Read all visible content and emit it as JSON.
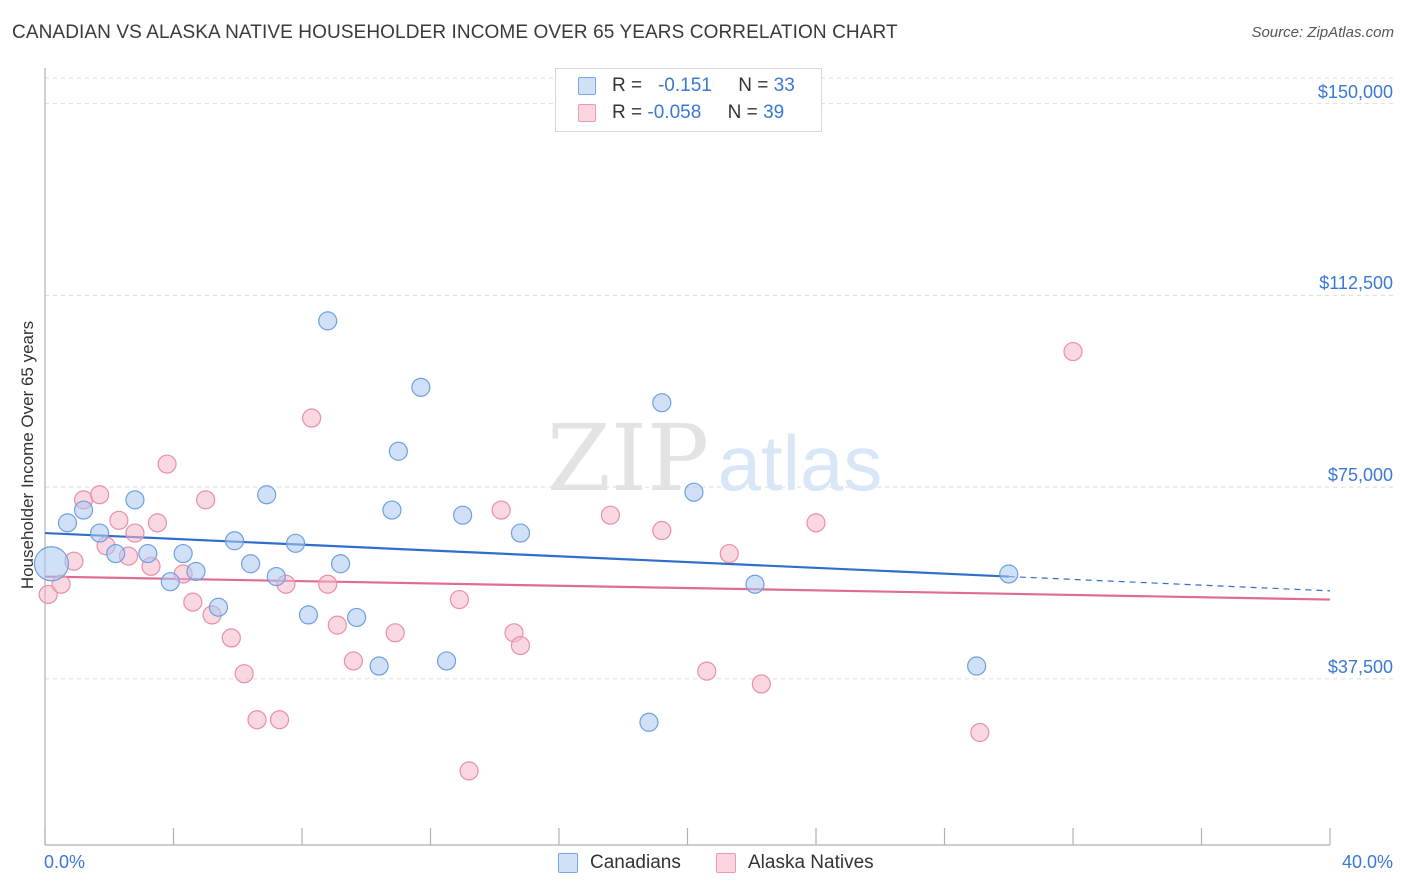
{
  "title": "CANADIAN VS ALASKA NATIVE HOUSEHOLDER INCOME OVER 65 YEARS CORRELATION CHART",
  "source": "Source: ZipAtlas.com",
  "watermark": {
    "zip": "ZIP",
    "atlas": "atlas"
  },
  "legend_stats": [
    {
      "r_label": "R =",
      "r_value": "-0.151",
      "n_label": "N =",
      "n_value": "33",
      "color": "#aac8f0"
    },
    {
      "r_label": "R =",
      "r_value": "-0.058",
      "n_label": "N =",
      "n_value": "39",
      "color": "#f5b8c9"
    }
  ],
  "legend_bottom": [
    {
      "label": "Canadians",
      "color": "#aac8f0"
    },
    {
      "label": "Alaska Natives",
      "color": "#f5b8c9"
    }
  ],
  "chart_data": {
    "type": "scatter",
    "title": "CANADIAN VS ALASKA NATIVE HOUSEHOLDER INCOME OVER 65 YEARS CORRELATION CHART",
    "xlabel": "",
    "ylabel": "Householder Income Over 65 years",
    "xlim": [
      0,
      40
    ],
    "ylim": [
      5000,
      155000
    ],
    "x_tick_labels": [
      "0.0%",
      "40.0%"
    ],
    "y_ticks": [
      37500,
      75000,
      112500,
      150000
    ],
    "y_tick_labels": [
      "$37,500",
      "$75,000",
      "$112,500",
      "$150,000"
    ],
    "grid": true,
    "series": [
      {
        "name": "Canadians",
        "color": "#aac8f0",
        "edge": "#6f9fe0",
        "trend_color": "#2f6fcc",
        "trend": {
          "x0": 0,
          "y0": 66000,
          "x1": 30,
          "y1": 57500,
          "dash_to_x": 40,
          "dash_to_y": 54700
        },
        "points": [
          [
            0.2,
            60000,
            "big"
          ],
          [
            0.7,
            68000
          ],
          [
            1.2,
            70500
          ],
          [
            1.7,
            66000
          ],
          [
            2.2,
            62000
          ],
          [
            2.8,
            72500
          ],
          [
            3.2,
            62000
          ],
          [
            3.9,
            56500
          ],
          [
            4.3,
            62000
          ],
          [
            4.7,
            58500
          ],
          [
            5.4,
            51500
          ],
          [
            5.9,
            64500
          ],
          [
            6.4,
            60000
          ],
          [
            6.9,
            73500
          ],
          [
            7.2,
            57500
          ],
          [
            7.8,
            64000
          ],
          [
            8.2,
            50000
          ],
          [
            8.8,
            107500
          ],
          [
            9.2,
            60000
          ],
          [
            9.7,
            49500
          ],
          [
            10.4,
            40000
          ],
          [
            10.8,
            70500
          ],
          [
            11.0,
            82000
          ],
          [
            11.7,
            94500
          ],
          [
            12.5,
            41000
          ],
          [
            13.0,
            69500
          ],
          [
            14.8,
            66000
          ],
          [
            19.2,
            91500
          ],
          [
            18.8,
            29000
          ],
          [
            20.2,
            74000
          ],
          [
            22.1,
            56000
          ],
          [
            29.0,
            40000
          ],
          [
            30.0,
            58000
          ]
        ]
      },
      {
        "name": "Alaska Natives",
        "color": "#f5b8c9",
        "edge": "#ea8ea8",
        "trend_color": "#e06b93",
        "trend": {
          "x0": 0,
          "y0": 57500,
          "x1": 40,
          "y1": 53000
        },
        "points": [
          [
            0.1,
            54000
          ],
          [
            0.5,
            56000
          ],
          [
            0.9,
            60500
          ],
          [
            1.2,
            72500
          ],
          [
            1.7,
            73500
          ],
          [
            1.9,
            63500
          ],
          [
            2.3,
            68500
          ],
          [
            2.6,
            61500
          ],
          [
            2.8,
            66000
          ],
          [
            3.3,
            59500
          ],
          [
            3.5,
            68000
          ],
          [
            3.8,
            79500
          ],
          [
            4.3,
            58000
          ],
          [
            4.6,
            52500
          ],
          [
            5.0,
            72500
          ],
          [
            5.2,
            50000
          ],
          [
            5.8,
            45500
          ],
          [
            6.2,
            38500
          ],
          [
            6.6,
            29500
          ],
          [
            7.3,
            29500
          ],
          [
            7.5,
            56000
          ],
          [
            8.3,
            88500
          ],
          [
            8.8,
            56000
          ],
          [
            9.1,
            48000
          ],
          [
            9.6,
            41000
          ],
          [
            10.9,
            46500
          ],
          [
            12.9,
            53000
          ],
          [
            13.2,
            19500
          ],
          [
            14.2,
            70500
          ],
          [
            14.6,
            46500
          ],
          [
            14.8,
            44000
          ],
          [
            17.6,
            69500
          ],
          [
            19.2,
            66500
          ],
          [
            20.6,
            39000
          ],
          [
            21.3,
            62000
          ],
          [
            22.3,
            36500
          ],
          [
            24.0,
            68000
          ],
          [
            29.1,
            27000
          ],
          [
            32.0,
            101500
          ]
        ]
      }
    ]
  }
}
